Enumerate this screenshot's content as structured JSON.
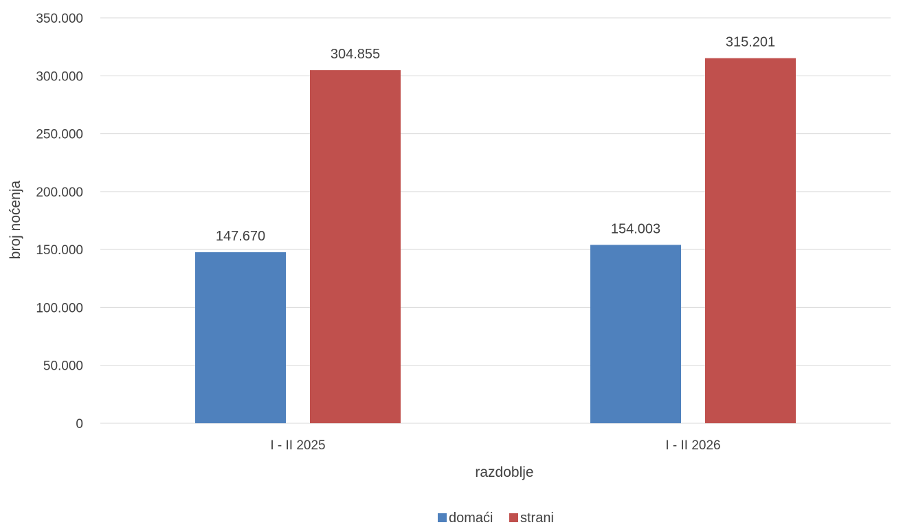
{
  "chart_data": {
    "type": "bar",
    "title": "",
    "xlabel": "razdoblje",
    "ylabel": "broj noćenja",
    "categories": [
      "I - II 2025",
      "I - II 2026"
    ],
    "series": [
      {
        "name": "domaći",
        "values": [
          147670,
          154003
        ],
        "value_labels": [
          "147.670",
          "154.003"
        ],
        "color": "#4F81BD"
      },
      {
        "name": "strani",
        "values": [
          304855,
          315201
        ],
        "value_labels": [
          "304.855",
          "315.201"
        ],
        "color": "#C0504D"
      }
    ],
    "ylim": [
      0,
      350000
    ],
    "yticks": [
      0,
      50000,
      100000,
      150000,
      200000,
      250000,
      300000,
      350000
    ],
    "ytick_labels": [
      "0",
      "50.000",
      "100.000",
      "150.000",
      "200.000",
      "250.000",
      "300.000",
      "350.000"
    ],
    "grid": true,
    "gridline_color": "#D9D9D9",
    "legend_position": "bottom"
  }
}
